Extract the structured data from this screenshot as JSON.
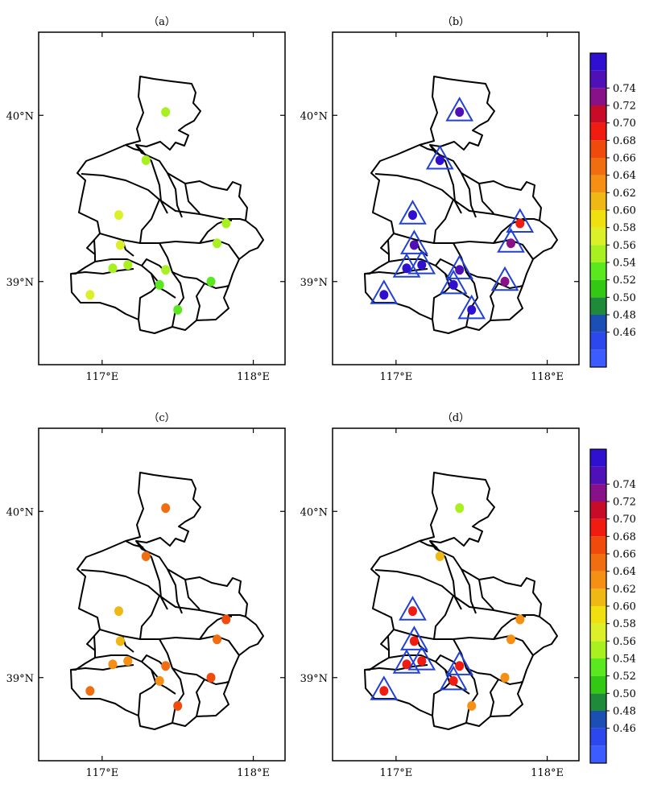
{
  "figure": {
    "panels": [
      {
        "label": "（a）",
        "lat_ticks": [
          "40°N",
          "39°N"
        ],
        "lon_ticks": [
          "117°E",
          "118°E"
        ],
        "colorbar": false,
        "stations": [
          {
            "lon": 117.42,
            "lat": 40.02,
            "value": 0.54,
            "significant": false
          },
          {
            "lon": 117.29,
            "lat": 39.73,
            "value": 0.55,
            "significant": false
          },
          {
            "lon": 117.11,
            "lat": 39.4,
            "value": 0.56,
            "significant": false
          },
          {
            "lon": 117.12,
            "lat": 39.22,
            "value": 0.56,
            "significant": false
          },
          {
            "lon": 117.07,
            "lat": 39.08,
            "value": 0.55,
            "significant": false
          },
          {
            "lon": 117.17,
            "lat": 39.1,
            "value": 0.55,
            "significant": false
          },
          {
            "lon": 117.42,
            "lat": 39.07,
            "value": 0.54,
            "significant": false
          },
          {
            "lon": 117.38,
            "lat": 38.98,
            "value": 0.53,
            "significant": false
          },
          {
            "lon": 116.92,
            "lat": 38.92,
            "value": 0.56,
            "significant": false
          },
          {
            "lon": 117.5,
            "lat": 38.83,
            "value": 0.53,
            "significant": false
          },
          {
            "lon": 117.82,
            "lat": 39.35,
            "value": 0.55,
            "significant": false
          },
          {
            "lon": 117.76,
            "lat": 39.23,
            "value": 0.54,
            "significant": false
          },
          {
            "lon": 117.72,
            "lat": 39.0,
            "value": 0.53,
            "significant": false
          }
        ]
      },
      {
        "label": "（b）",
        "lat_ticks": [
          "40°N",
          "39°N"
        ],
        "lon_ticks": [
          "117°E",
          "118°E"
        ],
        "colorbar": true,
        "stations": [
          {
            "lon": 117.42,
            "lat": 40.02,
            "value": 0.75,
            "significant": true
          },
          {
            "lon": 117.29,
            "lat": 39.73,
            "value": 0.76,
            "significant": true
          },
          {
            "lon": 117.11,
            "lat": 39.4,
            "value": 0.76,
            "significant": true
          },
          {
            "lon": 117.12,
            "lat": 39.22,
            "value": 0.74,
            "significant": true
          },
          {
            "lon": 117.07,
            "lat": 39.08,
            "value": 0.76,
            "significant": true
          },
          {
            "lon": 117.17,
            "lat": 39.1,
            "value": 0.76,
            "significant": true
          },
          {
            "lon": 117.42,
            "lat": 39.07,
            "value": 0.75,
            "significant": true
          },
          {
            "lon": 117.38,
            "lat": 38.98,
            "value": 0.76,
            "significant": true
          },
          {
            "lon": 116.92,
            "lat": 38.92,
            "value": 0.76,
            "significant": true
          },
          {
            "lon": 117.5,
            "lat": 38.83,
            "value": 0.76,
            "significant": true
          },
          {
            "lon": 117.82,
            "lat": 39.35,
            "value": 0.69,
            "significant": true
          },
          {
            "lon": 117.76,
            "lat": 39.23,
            "value": 0.72,
            "significant": true
          },
          {
            "lon": 117.72,
            "lat": 39.0,
            "value": 0.72,
            "significant": true
          }
        ]
      },
      {
        "label": "（c）",
        "lat_ticks": [
          "40°N",
          "39°N"
        ],
        "lon_ticks": [
          "117°E",
          "118°E"
        ],
        "colorbar": false,
        "stations": [
          {
            "lon": 117.42,
            "lat": 40.02,
            "value": 0.65,
            "significant": false
          },
          {
            "lon": 117.29,
            "lat": 39.73,
            "value": 0.65,
            "significant": false
          },
          {
            "lon": 117.11,
            "lat": 39.4,
            "value": 0.6,
            "significant": false
          },
          {
            "lon": 117.12,
            "lat": 39.22,
            "value": 0.6,
            "significant": false
          },
          {
            "lon": 117.07,
            "lat": 39.08,
            "value": 0.63,
            "significant": false
          },
          {
            "lon": 117.17,
            "lat": 39.1,
            "value": 0.63,
            "significant": false
          },
          {
            "lon": 117.42,
            "lat": 39.07,
            "value": 0.64,
            "significant": false
          },
          {
            "lon": 117.38,
            "lat": 38.98,
            "value": 0.63,
            "significant": false
          },
          {
            "lon": 116.92,
            "lat": 38.92,
            "value": 0.65,
            "significant": false
          },
          {
            "lon": 117.5,
            "lat": 38.83,
            "value": 0.66,
            "significant": false
          },
          {
            "lon": 117.82,
            "lat": 39.35,
            "value": 0.67,
            "significant": false
          },
          {
            "lon": 117.76,
            "lat": 39.23,
            "value": 0.64,
            "significant": false
          },
          {
            "lon": 117.72,
            "lat": 39.0,
            "value": 0.67,
            "significant": false
          }
        ]
      },
      {
        "label": "（d）",
        "lat_ticks": [
          "40°N",
          "39°N"
        ],
        "lon_ticks": [
          "117°E",
          "118°E"
        ],
        "colorbar": true,
        "stations": [
          {
            "lon": 117.42,
            "lat": 40.02,
            "value": 0.55,
            "significant": false
          },
          {
            "lon": 117.29,
            "lat": 39.73,
            "value": 0.61,
            "significant": false
          },
          {
            "lon": 117.11,
            "lat": 39.4,
            "value": 0.69,
            "significant": true
          },
          {
            "lon": 117.12,
            "lat": 39.22,
            "value": 0.69,
            "significant": true
          },
          {
            "lon": 117.07,
            "lat": 39.08,
            "value": 0.69,
            "significant": true
          },
          {
            "lon": 117.17,
            "lat": 39.1,
            "value": 0.69,
            "significant": true
          },
          {
            "lon": 117.42,
            "lat": 39.07,
            "value": 0.69,
            "significant": true
          },
          {
            "lon": 117.38,
            "lat": 38.98,
            "value": 0.68,
            "significant": true
          },
          {
            "lon": 116.92,
            "lat": 38.92,
            "value": 0.69,
            "significant": true
          },
          {
            "lon": 117.5,
            "lat": 38.83,
            "value": 0.63,
            "significant": false
          },
          {
            "lon": 117.82,
            "lat": 39.35,
            "value": 0.62,
            "significant": false
          },
          {
            "lon": 117.76,
            "lat": 39.23,
            "value": 0.63,
            "significant": false
          },
          {
            "lon": 117.72,
            "lat": 39.0,
            "value": 0.63,
            "significant": false
          }
        ]
      }
    ],
    "colorbar": {
      "tick_labels": [
        "0.74",
        "0.72",
        "0.70",
        "0.68",
        "0.66",
        "0.64",
        "0.62",
        "0.60",
        "0.58",
        "0.56",
        "0.54",
        "0.52",
        "0.50",
        "0.48",
        "0.46"
      ],
      "levels": [
        0.44,
        0.46,
        0.48,
        0.5,
        0.52,
        0.54,
        0.56,
        0.58,
        0.6,
        0.62,
        0.64,
        0.66,
        0.68,
        0.7,
        0.72,
        0.74,
        0.76
      ],
      "colors_bottom_to_top": [
        "#3c5cff",
        "#2d47ee",
        "#1b4fb3",
        "#1f8a3a",
        "#32c814",
        "#5ae81e",
        "#a8f020",
        "#dcf02a",
        "#f0e010",
        "#f0b814",
        "#f59014",
        "#f06e10",
        "#f04a0c",
        "#f01c12",
        "#c80c28",
        "#881088",
        "#5010b8",
        "#3010d0"
      ]
    },
    "significance_marker": "triangle",
    "significance_color": "#2040d8",
    "boundary_color": "#000000"
  }
}
